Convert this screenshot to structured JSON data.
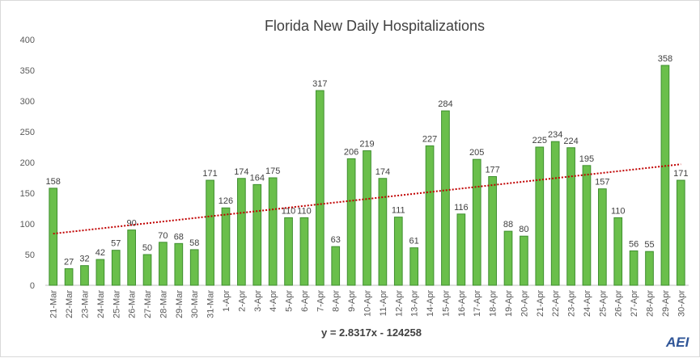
{
  "chart_data": {
    "type": "bar",
    "title": "Florida New Daily Hospitalizations",
    "xlabel": "",
    "ylabel": "",
    "ylim": [
      0,
      400
    ],
    "yticks": [
      0,
      50,
      100,
      150,
      200,
      250,
      300,
      350,
      400
    ],
    "grid": false,
    "legend": "none",
    "categories": [
      "21-Mar",
      "22-Mar",
      "23-Mar",
      "24-Mar",
      "25-Mar",
      "26-Mar",
      "27-Mar",
      "28-Mar",
      "29-Mar",
      "30-Mar",
      "31-Mar",
      "1-Apr",
      "2-Apr",
      "3-Apr",
      "4-Apr",
      "5-Apr",
      "6-Apr",
      "7-Apr",
      "8-Apr",
      "9-Apr",
      "10-Apr",
      "11-Apr",
      "12-Apr",
      "13-Apr",
      "14-Apr",
      "15-Apr",
      "16-Apr",
      "17-Apr",
      "18-Apr",
      "19-Apr",
      "20-Apr",
      "21-Apr",
      "22-Apr",
      "23-Apr",
      "24-Apr",
      "25-Apr",
      "26-Apr",
      "27-Apr",
      "28-Apr",
      "29-Apr",
      "30-Apr"
    ],
    "values": [
      158,
      27,
      32,
      42,
      57,
      90,
      50,
      70,
      68,
      58,
      171,
      126,
      174,
      164,
      175,
      110,
      110,
      317,
      63,
      206,
      219,
      174,
      111,
      61,
      227,
      284,
      116,
      205,
      177,
      88,
      80,
      225,
      234,
      224,
      195,
      157,
      110,
      56,
      55,
      358,
      171
    ],
    "trendline": {
      "type": "linear",
      "equation": "y = 2.8317x - 124258",
      "start_value": 84,
      "end_value": 197
    },
    "colors": {
      "bar_fill": "#6abf4b",
      "bar_stroke": "#3f8f2f",
      "trend": "#c00000",
      "axis": "#bfbfbf"
    }
  },
  "logo": {
    "text": "AEI"
  }
}
